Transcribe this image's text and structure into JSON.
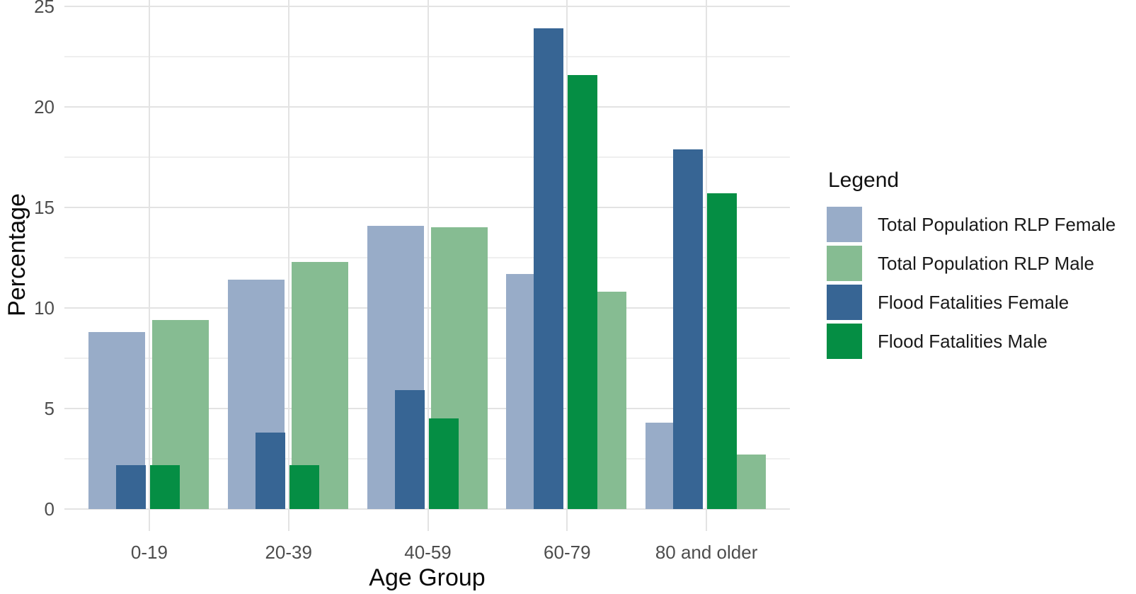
{
  "figure": {
    "background": "#ffffff"
  },
  "chart_data": {
    "type": "bar",
    "title": "",
    "xlabel": "Age Group",
    "ylabel": "Percentage",
    "categories": [
      "0-19",
      "20-39",
      "40-59",
      "60-79",
      "80 and older"
    ],
    "series": [
      {
        "name": "Total Population RLP Female",
        "color": "#98ACC8",
        "side": "left",
        "layer": "back",
        "values": [
          8.8,
          11.4,
          14.1,
          11.7,
          4.3
        ]
      },
      {
        "name": "Total Population RLP Male",
        "color": "#86BC92",
        "side": "right",
        "layer": "back",
        "values": [
          9.4,
          12.3,
          14.0,
          10.8,
          2.7
        ]
      },
      {
        "name": "Flood Fatalities Female",
        "color": "#376594",
        "side": "left",
        "layer": "front",
        "values": [
          2.2,
          3.8,
          5.9,
          23.9,
          17.9
        ]
      },
      {
        "name": "Flood Fatalities Male",
        "color": "#058E44",
        "side": "right",
        "layer": "front",
        "values": [
          2.2,
          2.2,
          4.5,
          21.6,
          15.7
        ]
      }
    ],
    "ylim": [
      0,
      25
    ],
    "y_major_ticks": [
      0,
      5,
      10,
      15,
      20,
      25
    ],
    "y_minor_ticks": [
      2.5,
      7.5,
      12.5,
      17.5,
      22.5
    ],
    "y_tick_labels": [
      "0",
      "5",
      "10",
      "15",
      "20",
      "25"
    ],
    "grid": "on",
    "legend_title": "Legend",
    "legend_position": "right"
  },
  "colors": {
    "grid_major": "#E3E3E3",
    "grid_minor": "#EFEFEF",
    "axis_tick": "#E3E3E3",
    "tick_label_text": "#4D4D4D",
    "axis_title_text": "#0A0A0A",
    "legend_title_text": "#111111",
    "legend_label_text": "#1A1A1A"
  }
}
